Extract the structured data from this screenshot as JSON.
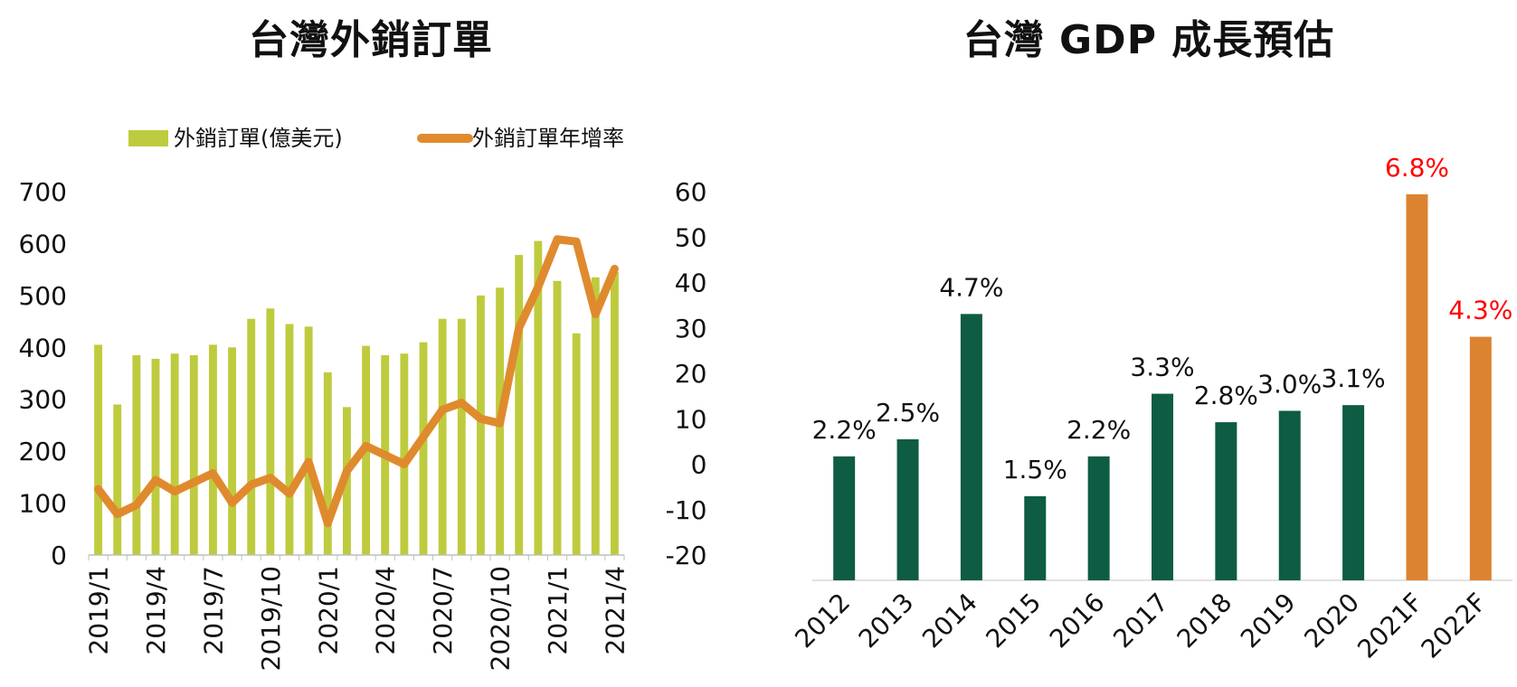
{
  "chart_data": [
    {
      "type": "bar+line",
      "title": "台灣外銷訂單",
      "categories": [
        "2019/1",
        "2019/2",
        "2019/3",
        "2019/4",
        "2019/5",
        "2019/6",
        "2019/7",
        "2019/8",
        "2019/9",
        "2019/10",
        "2019/11",
        "2019/12",
        "2020/1",
        "2020/2",
        "2020/3",
        "2020/4",
        "2020/5",
        "2020/6",
        "2020/7",
        "2020/8",
        "2020/9",
        "2020/10",
        "2020/11",
        "2020/12",
        "2021/1",
        "2021/2",
        "2021/3",
        "2021/4"
      ],
      "x_tick_labels": [
        "2019/1",
        "2019/4",
        "2019/7",
        "2019/10",
        "2020/1",
        "2020/4",
        "2020/7",
        "2020/10",
        "2021/1",
        "2021/4"
      ],
      "series": [
        {
          "name": "外銷訂單(億美元)",
          "type": "bar",
          "axis": "left",
          "color": "#bfcb3e",
          "values": [
            405,
            290,
            385,
            378,
            388,
            385,
            405,
            400,
            455,
            475,
            445,
            440,
            352,
            285,
            403,
            385,
            388,
            410,
            455,
            455,
            500,
            515,
            578,
            605,
            528,
            427,
            535,
            545
          ]
        },
        {
          "name": "外銷訂單年增率",
          "type": "line",
          "axis": "right",
          "color": "#e08a2e",
          "values": [
            -5.5,
            -11,
            -9,
            -3.5,
            -6,
            -4,
            -2,
            -8.5,
            -4.5,
            -3,
            -6.5,
            0.5,
            -13,
            -1.5,
            4,
            2,
            0,
            6,
            12,
            13.5,
            10,
            9,
            30,
            39,
            49.5,
            49,
            33,
            43
          ]
        }
      ],
      "y_left": {
        "ticks": [
          "0",
          "100",
          "200",
          "300",
          "400",
          "500",
          "600",
          "700"
        ],
        "ylim": [
          0,
          700
        ]
      },
      "y_right": {
        "ticks": [
          "-20%",
          "-10%",
          "0%",
          "10%",
          "20%",
          "30%",
          "40%",
          "50%",
          "60%"
        ],
        "ylim": [
          -20,
          60
        ]
      },
      "legend_position": "top"
    },
    {
      "type": "bar",
      "title": "台灣 GDP 成長預估",
      "categories": [
        "2012",
        "2013",
        "2014",
        "2015",
        "2016",
        "2017",
        "2018",
        "2019",
        "2020",
        "2021F",
        "2022F"
      ],
      "values": [
        2.2,
        2.5,
        4.7,
        1.5,
        2.2,
        3.3,
        2.8,
        3.0,
        3.1,
        6.8,
        4.3
      ],
      "labels": [
        "2.2%",
        "2.5%",
        "4.7%",
        "1.5%",
        "2.2%",
        "3.3%",
        "2.8%",
        "3.0%",
        "3.1%",
        "6.8%",
        "4.3%"
      ],
      "colors": [
        "#0e5c43",
        "#0e5c43",
        "#0e5c43",
        "#0e5c43",
        "#0e5c43",
        "#0e5c43",
        "#0e5c43",
        "#0e5c43",
        "#0e5c43",
        "#dc8331",
        "#dc8331"
      ],
      "label_colors": [
        "#111111",
        "#111111",
        "#111111",
        "#111111",
        "#111111",
        "#111111",
        "#111111",
        "#111111",
        "#111111",
        "#ff0000",
        "#ff0000"
      ]
    }
  ]
}
